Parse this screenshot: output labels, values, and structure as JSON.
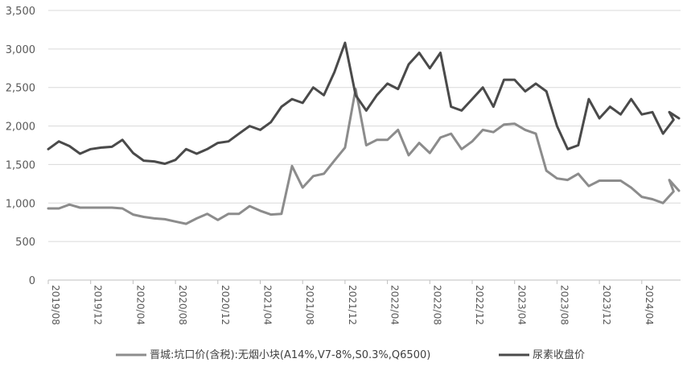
{
  "chart_data": {
    "type": "line",
    "x_ticks": [
      "2019/08",
      "2019/12",
      "2020/04",
      "2020/08",
      "2020/12",
      "2021/04",
      "2021/08",
      "2021/12",
      "2022/04",
      "2022/08",
      "2022/12",
      "2023/04",
      "2023/08",
      "2023/12",
      "2024/04"
    ],
    "y_ticks": [
      "0",
      "500",
      "1,000",
      "1,500",
      "2,000",
      "2,500",
      "3,000",
      "3,500"
    ],
    "ylim": [
      0,
      3500
    ],
    "grid": "horizontal",
    "legend_position": "bottom",
    "x_range": [
      "2019/08",
      "2024/08"
    ],
    "series": [
      {
        "name": "晋城:坑口价(含税):无烟小块(A14%,V7-8%,S0.3%,Q6500)",
        "color": "#8c8c8c",
        "points": [
          [
            "2019/08",
            930
          ],
          [
            "2019/09",
            930
          ],
          [
            "2019/10",
            980
          ],
          [
            "2019/11",
            940
          ],
          [
            "2019/12",
            940
          ],
          [
            "2020/01",
            940
          ],
          [
            "2020/02",
            940
          ],
          [
            "2020/03",
            930
          ],
          [
            "2020/04",
            850
          ],
          [
            "2020/05",
            820
          ],
          [
            "2020/06",
            800
          ],
          [
            "2020/07",
            790
          ],
          [
            "2020/08",
            760
          ],
          [
            "2020/09",
            730
          ],
          [
            "2020/10",
            800
          ],
          [
            "2020/11",
            860
          ],
          [
            "2020/12",
            780
          ],
          [
            "2021/01",
            860
          ],
          [
            "2021/02",
            860
          ],
          [
            "2021/03",
            960
          ],
          [
            "2021/04",
            900
          ],
          [
            "2021/05",
            850
          ],
          [
            "2021/06",
            860
          ],
          [
            "2021/07",
            1480
          ],
          [
            "2021/08",
            1200
          ],
          [
            "2021/09",
            1350
          ],
          [
            "2021/10",
            1380
          ],
          [
            "2021/11",
            1550
          ],
          [
            "2021/12",
            1720
          ],
          [
            "2022/01",
            2480
          ],
          [
            "2022/02",
            1750
          ],
          [
            "2022/03",
            1820
          ],
          [
            "2022/04",
            1820
          ],
          [
            "2022/05",
            1950
          ],
          [
            "2022/06",
            1620
          ],
          [
            "2022/07",
            1780
          ],
          [
            "2022/08",
            1650
          ],
          [
            "2022/09",
            1850
          ],
          [
            "2022/10",
            1900
          ],
          [
            "2022/11",
            1700
          ],
          [
            "2022/12",
            1800
          ],
          [
            "2023/01",
            1950
          ],
          [
            "2023/02",
            1920
          ],
          [
            "2023/03",
            2020
          ],
          [
            "2023/04",
            2030
          ],
          [
            "2023/05",
            1950
          ],
          [
            "2023/06",
            1900
          ],
          [
            "2023/07",
            1420
          ],
          [
            "2023/08",
            1320
          ],
          [
            "2023/09",
            1300
          ],
          [
            "2023/10",
            1380
          ],
          [
            "2023/11",
            1220
          ],
          [
            "2023/12",
            1290
          ],
          [
            "2024/01",
            1290
          ],
          [
            "2024/02",
            1290
          ],
          [
            "2024/03",
            1200
          ],
          [
            "2024/04",
            1080
          ],
          [
            "2024/05",
            1050
          ],
          [
            "2024/06",
            1000
          ],
          [
            "2024/07",
            1150
          ],
          [
            "2024/08",
            1300
          ],
          [
            "2024/08",
            1160
          ]
        ]
      },
      {
        "name": "尿素收盘价",
        "color": "#4a4a4a",
        "points": [
          [
            "2019/08",
            1700
          ],
          [
            "2019/09",
            1800
          ],
          [
            "2019/10",
            1740
          ],
          [
            "2019/11",
            1640
          ],
          [
            "2019/12",
            1700
          ],
          [
            "2020/01",
            1720
          ],
          [
            "2020/02",
            1730
          ],
          [
            "2020/03",
            1820
          ],
          [
            "2020/04",
            1650
          ],
          [
            "2020/05",
            1550
          ],
          [
            "2020/06",
            1540
          ],
          [
            "2020/07",
            1510
          ],
          [
            "2020/08",
            1560
          ],
          [
            "2020/09",
            1700
          ],
          [
            "2020/10",
            1640
          ],
          [
            "2020/11",
            1700
          ],
          [
            "2020/12",
            1780
          ],
          [
            "2021/01",
            1800
          ],
          [
            "2021/02",
            1900
          ],
          [
            "2021/03",
            2000
          ],
          [
            "2021/04",
            1950
          ],
          [
            "2021/05",
            2050
          ],
          [
            "2021/06",
            2250
          ],
          [
            "2021/07",
            2350
          ],
          [
            "2021/08",
            2300
          ],
          [
            "2021/09",
            2500
          ],
          [
            "2021/10",
            2400
          ],
          [
            "2021/11",
            2700
          ],
          [
            "2021/12",
            3080
          ],
          [
            "2022/01",
            2400
          ],
          [
            "2022/02",
            2200
          ],
          [
            "2022/03",
            2400
          ],
          [
            "2022/04",
            2550
          ],
          [
            "2022/05",
            2480
          ],
          [
            "2022/06",
            2800
          ],
          [
            "2022/07",
            2950
          ],
          [
            "2022/08",
            2750
          ],
          [
            "2022/09",
            2950
          ],
          [
            "2022/10",
            2250
          ],
          [
            "2022/11",
            2200
          ],
          [
            "2022/12",
            2350
          ],
          [
            "2023/01",
            2500
          ],
          [
            "2023/02",
            2250
          ],
          [
            "2023/03",
            2600
          ],
          [
            "2023/04",
            2600
          ],
          [
            "2023/05",
            2450
          ],
          [
            "2023/06",
            2550
          ],
          [
            "2023/07",
            2450
          ],
          [
            "2023/08",
            2000
          ],
          [
            "2023/09",
            1700
          ],
          [
            "2023/10",
            1750
          ],
          [
            "2023/11",
            2350
          ],
          [
            "2023/12",
            2100
          ],
          [
            "2024/01",
            2250
          ],
          [
            "2024/02",
            2150
          ],
          [
            "2024/03",
            2350
          ],
          [
            "2024/04",
            2150
          ],
          [
            "2024/05",
            2180
          ],
          [
            "2024/06",
            1900
          ],
          [
            "2024/07",
            2080
          ],
          [
            "2024/08",
            2180
          ],
          [
            "2024/08",
            2100
          ]
        ]
      }
    ]
  }
}
